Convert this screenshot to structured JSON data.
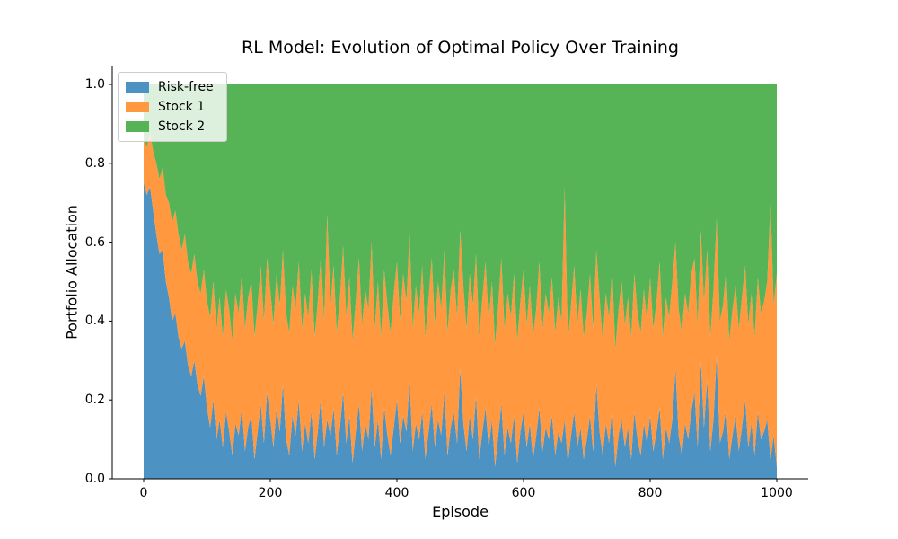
{
  "chart_data": {
    "type": "area",
    "stacked": true,
    "title": "RL Model: Evolution of Optimal Policy Over Training",
    "xlabel": "Episode",
    "ylabel": "Portfolio Allocation",
    "x_range": [
      0,
      1000
    ],
    "y_range": [
      0.0,
      1.0
    ],
    "x_ticks": [
      0,
      200,
      400,
      600,
      800,
      1000
    ],
    "y_ticks": [
      "0.0",
      "0.2",
      "0.4",
      "0.6",
      "0.8",
      "1.0"
    ],
    "grid": false,
    "legend_position": "upper left",
    "allocations_sum_to": 1.0,
    "episodes": {
      "start": 0,
      "step": 5,
      "count": 201
    },
    "series": [
      {
        "name": "Risk-free",
        "color": "#4c92c3",
        "values": [
          0.75,
          0.72,
          0.74,
          0.68,
          0.62,
          0.57,
          0.58,
          0.5,
          0.46,
          0.4,
          0.42,
          0.36,
          0.33,
          0.35,
          0.29,
          0.26,
          0.3,
          0.24,
          0.21,
          0.26,
          0.18,
          0.13,
          0.2,
          0.1,
          0.15,
          0.08,
          0.17,
          0.12,
          0.06,
          0.14,
          0.11,
          0.18,
          0.07,
          0.13,
          0.16,
          0.05,
          0.12,
          0.19,
          0.09,
          0.22,
          0.15,
          0.08,
          0.18,
          0.12,
          0.24,
          0.1,
          0.06,
          0.16,
          0.11,
          0.2,
          0.07,
          0.14,
          0.09,
          0.17,
          0.05,
          0.12,
          0.21,
          0.08,
          0.15,
          0.11,
          0.18,
          0.06,
          0.13,
          0.22,
          0.09,
          0.16,
          0.04,
          0.12,
          0.19,
          0.07,
          0.14,
          0.1,
          0.23,
          0.08,
          0.15,
          0.05,
          0.18,
          0.11,
          0.06,
          0.13,
          0.2,
          0.09,
          0.16,
          0.12,
          0.25,
          0.07,
          0.14,
          0.1,
          0.17,
          0.05,
          0.12,
          0.19,
          0.08,
          0.15,
          0.11,
          0.22,
          0.06,
          0.13,
          0.17,
          0.09,
          0.28,
          0.14,
          0.07,
          0.16,
          0.1,
          0.21,
          0.05,
          0.12,
          0.18,
          0.08,
          0.15,
          0.03,
          0.11,
          0.19,
          0.06,
          0.13,
          0.09,
          0.16,
          0.04,
          0.12,
          0.17,
          0.08,
          0.14,
          0.05,
          0.11,
          0.18,
          0.07,
          0.13,
          0.1,
          0.16,
          0.06,
          0.12,
          0.09,
          0.15,
          0.04,
          0.11,
          0.17,
          0.08,
          0.13,
          0.05,
          0.1,
          0.16,
          0.07,
          0.24,
          0.12,
          0.06,
          0.14,
          0.09,
          0.18,
          0.03,
          0.11,
          0.15,
          0.08,
          0.13,
          0.05,
          0.17,
          0.1,
          0.06,
          0.14,
          0.09,
          0.16,
          0.07,
          0.12,
          0.18,
          0.05,
          0.13,
          0.09,
          0.15,
          0.28,
          0.11,
          0.06,
          0.14,
          0.1,
          0.17,
          0.22,
          0.08,
          0.3,
          0.13,
          0.25,
          0.07,
          0.15,
          0.31,
          0.09,
          0.12,
          0.18,
          0.05,
          0.11,
          0.16,
          0.07,
          0.13,
          0.2,
          0.08,
          0.14,
          0.06,
          0.17,
          0.1,
          0.12,
          0.15,
          0.05,
          0.11,
          0.03
        ]
      },
      {
        "name": "Stock 1",
        "color": "#ff983f",
        "values": [
          0.12,
          0.12,
          0.14,
          0.15,
          0.18,
          0.19,
          0.21,
          0.22,
          0.24,
          0.25,
          0.26,
          0.26,
          0.25,
          0.27,
          0.26,
          0.26,
          0.27,
          0.26,
          0.26,
          0.27,
          0.27,
          0.28,
          0.3,
          0.28,
          0.31,
          0.28,
          0.31,
          0.31,
          0.29,
          0.33,
          0.31,
          0.34,
          0.31,
          0.33,
          0.34,
          0.31,
          0.32,
          0.35,
          0.31,
          0.34,
          0.33,
          0.31,
          0.34,
          0.32,
          0.34,
          0.32,
          0.31,
          0.33,
          0.32,
          0.35,
          0.31,
          0.33,
          0.32,
          0.36,
          0.31,
          0.33,
          0.36,
          0.32,
          0.52,
          0.33,
          0.36,
          0.31,
          0.33,
          0.37,
          0.32,
          0.35,
          0.31,
          0.33,
          0.37,
          0.32,
          0.34,
          0.33,
          0.37,
          0.3,
          0.35,
          0.31,
          0.35,
          0.33,
          0.31,
          0.34,
          0.35,
          0.31,
          0.36,
          0.33,
          0.37,
          0.31,
          0.35,
          0.32,
          0.37,
          0.31,
          0.34,
          0.37,
          0.31,
          0.35,
          0.32,
          0.36,
          0.31,
          0.35,
          0.36,
          0.32,
          0.35,
          0.35,
          0.31,
          0.36,
          0.34,
          0.36,
          0.31,
          0.34,
          0.37,
          0.32,
          0.35,
          0.31,
          0.33,
          0.37,
          0.32,
          0.34,
          0.32,
          0.36,
          0.31,
          0.33,
          0.36,
          0.31,
          0.35,
          0.31,
          0.32,
          0.37,
          0.31,
          0.34,
          0.32,
          0.35,
          0.31,
          0.34,
          0.31,
          0.59,
          0.31,
          0.33,
          0.37,
          0.31,
          0.35,
          0.31,
          0.32,
          0.36,
          0.31,
          0.34,
          0.34,
          0.29,
          0.33,
          0.32,
          0.35,
          0.3,
          0.32,
          0.35,
          0.31,
          0.33,
          0.31,
          0.35,
          0.32,
          0.31,
          0.34,
          0.31,
          0.35,
          0.31,
          0.33,
          0.37,
          0.31,
          0.33,
          0.32,
          0.35,
          0.32,
          0.32,
          0.31,
          0.33,
          0.32,
          0.35,
          0.34,
          0.31,
          0.33,
          0.32,
          0.33,
          0.29,
          0.33,
          0.35,
          0.31,
          0.32,
          0.35,
          0.3,
          0.32,
          0.33,
          0.31,
          0.33,
          0.34,
          0.31,
          0.33,
          0.3,
          0.34,
          0.32,
          0.33,
          0.35,
          0.65,
          0.33,
          0.49
        ]
      },
      {
        "name": "Stock 2",
        "color": "#56b356",
        "values_rule": "1 - risk_free - stock1"
      }
    ],
    "axis_color": "#000000"
  }
}
